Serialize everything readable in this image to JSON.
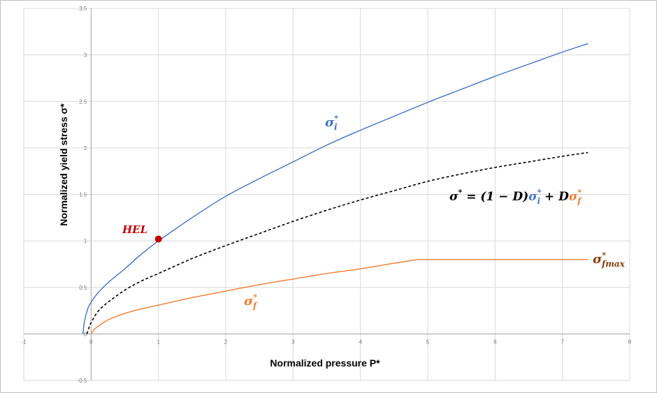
{
  "chart_data": {
    "type": "line",
    "title": "",
    "xlabel": "Normalized pressure P*",
    "ylabel": "Normalized yield stress σ*",
    "xlim": [
      -1,
      8
    ],
    "ylim": [
      -0.5,
      3.5
    ],
    "grid": true,
    "x_ticks": [
      -1,
      0,
      1,
      2,
      3,
      4,
      5,
      6,
      7,
      8
    ],
    "y_ticks": [
      -0.5,
      0,
      0.5,
      1,
      1.5,
      2,
      2.5,
      3,
      3.5
    ],
    "x_tick_labels": [
      "-1",
      "0",
      "1",
      "2",
      "3",
      "4",
      "5",
      "6",
      "7",
      "8"
    ],
    "y_tick_labels": [
      "-0.5",
      "0",
      "0.5",
      "1",
      "1.5",
      "2",
      "2.5",
      "3",
      "3.5"
    ],
    "series": [
      {
        "name": "σi*",
        "color": "#4472c4",
        "style": "solid",
        "x": [
          -0.12,
          -0.1,
          -0.05,
          0.0,
          0.1,
          0.25,
          0.5,
          0.75,
          1.0,
          1.5,
          2.0,
          2.5,
          3.0,
          3.5,
          4.0,
          4.5,
          5.0,
          5.5,
          6.0,
          6.5,
          7.0,
          7.38
        ],
        "values": [
          0.0,
          0.13,
          0.27,
          0.34,
          0.44,
          0.55,
          0.7,
          0.86,
          1.0,
          1.25,
          1.48,
          1.67,
          1.85,
          2.03,
          2.19,
          2.34,
          2.49,
          2.63,
          2.77,
          2.9,
          3.03,
          3.12
        ]
      },
      {
        "name": "σ* = (1 − D)σi* + Dσf*",
        "color": "#000000",
        "style": "dashed",
        "x": [
          -0.06,
          -0.03,
          0.0,
          0.1,
          0.25,
          0.5,
          0.75,
          1.0,
          1.5,
          2.0,
          2.5,
          3.0,
          3.5,
          4.0,
          4.5,
          5.0,
          5.5,
          6.0,
          6.5,
          7.0,
          7.38
        ],
        "values": [
          0.0,
          0.07,
          0.12,
          0.24,
          0.34,
          0.47,
          0.57,
          0.65,
          0.81,
          0.95,
          1.08,
          1.21,
          1.33,
          1.44,
          1.54,
          1.64,
          1.72,
          1.79,
          1.85,
          1.91,
          1.95
        ]
      },
      {
        "name": "σf*",
        "color": "#ed7d31",
        "style": "solid",
        "x": [
          0.0,
          0.05,
          0.1,
          0.25,
          0.5,
          0.75,
          1.0,
          1.5,
          2.0,
          2.5,
          3.0,
          3.5,
          4.0,
          4.5,
          4.85,
          5.5,
          6.0,
          6.5,
          7.0,
          7.38
        ],
        "values": [
          0.0,
          0.05,
          0.08,
          0.15,
          0.22,
          0.27,
          0.31,
          0.39,
          0.46,
          0.53,
          0.59,
          0.65,
          0.7,
          0.76,
          0.8,
          0.8,
          0.8,
          0.8,
          0.8,
          0.8
        ]
      }
    ],
    "points": [
      {
        "label": "HEL",
        "x": 1.0,
        "y": 1.02,
        "color": "#c00000"
      }
    ]
  },
  "annotations": {
    "hel": "HEL",
    "sigma_i_base": "σ",
    "sigma_i_sup": "*",
    "sigma_i_sub": "i",
    "sigma_f_base": "σ",
    "sigma_f_sup": "*",
    "sigma_f_sub": "f",
    "sigma_fmax_base": "σ",
    "sigma_fmax_sup": "*",
    "sigma_fmax_sub": "fmax",
    "eq_lhs": "σ",
    "eq_lhs_sup": "*",
    "eq_mid": " = (1 − D)",
    "eq_si": "σ",
    "eq_si_sup": "*",
    "eq_si_sub": "i",
    "eq_plus": " + D",
    "eq_sf": "σ",
    "eq_sf_sup": "*",
    "eq_sf_sub": "f"
  },
  "colors": {
    "blue": "#4472c4",
    "orange": "#ed7d31",
    "brown": "#843c0c",
    "red": "#c00000",
    "black": "#000000",
    "grid": "#d9d9d9"
  }
}
